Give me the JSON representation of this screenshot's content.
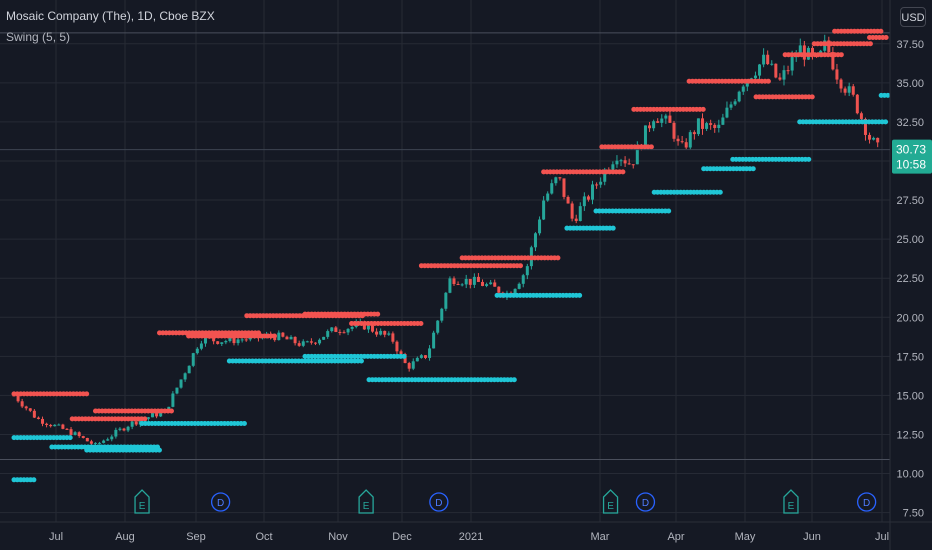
{
  "header": {
    "title": "Mosaic Company (The), 1D, Cboe BZX",
    "indicator": "Swing (5, 5)",
    "currency_button": "USD"
  },
  "colors": {
    "background": "#151924",
    "grid": "#262a35",
    "candle_up": "#26a69a",
    "candle_down": "#ef5350",
    "swing_high": "#f25350",
    "swing_low": "#1fc6d6",
    "axis_text": "#b2b5be",
    "price_label_bg": "#22ab94",
    "event_earnings": "#26a69a",
    "event_dividend": "#2962ff"
  },
  "chart_data": {
    "type": "candlestick",
    "y_axis": {
      "ylim": [
        6.9,
        40.3
      ],
      "ticks": [
        "7.50",
        "10.00",
        "12.50",
        "15.00",
        "17.50",
        "20.00",
        "22.50",
        "25.00",
        "27.50",
        "30.00",
        "32.50",
        "35.00",
        "37.50"
      ]
    },
    "x_axis": {
      "months": [
        "Jul",
        "Aug",
        "Sep",
        "Oct",
        "Nov",
        "Dec",
        "2021",
        "Mar",
        "Apr",
        "May",
        "Jun",
        "Jul"
      ],
      "day_range": [
        0,
        300
      ]
    },
    "last_price": {
      "price": "30.73",
      "countdown": "10:58"
    },
    "reference_lines": [
      38.2,
      10.9
    ],
    "path_points": [
      [
        0,
        15
      ],
      [
        8,
        13.5
      ],
      [
        20,
        12.6
      ],
      [
        28,
        11.8
      ],
      [
        40,
        13.2
      ],
      [
        52,
        14
      ],
      [
        60,
        17
      ],
      [
        64,
        18.6
      ],
      [
        72,
        18.5
      ],
      [
        90,
        18.8
      ],
      [
        100,
        18.2
      ],
      [
        110,
        19.2
      ],
      [
        120,
        19.5
      ],
      [
        130,
        18.6
      ],
      [
        135,
        16.8
      ],
      [
        142,
        17.6
      ],
      [
        150,
        22.5
      ],
      [
        160,
        22.2
      ],
      [
        170,
        21.5
      ],
      [
        176,
        23
      ],
      [
        182,
        27.5
      ],
      [
        187,
        29
      ],
      [
        192,
        26.2
      ],
      [
        200,
        28.5
      ],
      [
        207,
        30.5
      ],
      [
        212,
        29.8
      ],
      [
        220,
        33
      ],
      [
        226,
        32.2
      ],
      [
        229,
        30.6
      ],
      [
        235,
        32.3
      ],
      [
        242,
        32
      ],
      [
        250,
        35
      ],
      [
        258,
        36.5
      ],
      [
        263,
        35
      ],
      [
        270,
        37.2
      ],
      [
        276,
        36.2
      ],
      [
        279,
        37.5
      ],
      [
        283,
        35.5
      ],
      [
        289,
        33.8
      ],
      [
        294,
        31.5
      ],
      [
        297,
        30.7
      ]
    ],
    "swing_highs": [
      {
        "price": 15.1,
        "from_day": 0,
        "to_day": 25
      },
      {
        "price": 13.5,
        "from_day": 20,
        "to_day": 45
      },
      {
        "price": 14.0,
        "from_day": 28,
        "to_day": 55
      },
      {
        "price": 19.0,
        "from_day": 50,
        "to_day": 85
      },
      {
        "price": 18.8,
        "from_day": 60,
        "to_day": 90
      },
      {
        "price": 20.1,
        "from_day": 80,
        "to_day": 120
      },
      {
        "price": 20.2,
        "from_day": 100,
        "to_day": 126
      },
      {
        "price": 19.6,
        "from_day": 116,
        "to_day": 140
      },
      {
        "price": 23.3,
        "from_day": 140,
        "to_day": 175
      },
      {
        "price": 23.8,
        "from_day": 154,
        "to_day": 188
      },
      {
        "price": 29.3,
        "from_day": 182,
        "to_day": 210
      },
      {
        "price": 30.9,
        "from_day": 202,
        "to_day": 220
      },
      {
        "price": 33.3,
        "from_day": 213,
        "to_day": 237
      },
      {
        "price": 35.1,
        "from_day": 232,
        "to_day": 260
      },
      {
        "price": 34.1,
        "from_day": 255,
        "to_day": 275
      },
      {
        "price": 36.8,
        "from_day": 265,
        "to_day": 285
      },
      {
        "price": 37.5,
        "from_day": 275,
        "to_day": 295
      },
      {
        "price": 38.3,
        "from_day": 282,
        "to_day": 298
      },
      {
        "price": 37.9,
        "from_day": 294,
        "to_day": 310
      }
    ],
    "swing_lows": [
      {
        "price": 9.6,
        "from_day": 0,
        "to_day": 7
      },
      {
        "price": 12.3,
        "from_day": 0,
        "to_day": 20
      },
      {
        "price": 11.7,
        "from_day": 13,
        "to_day": 50
      },
      {
        "price": 11.5,
        "from_day": 25,
        "to_day": 50
      },
      {
        "price": 13.2,
        "from_day": 44,
        "to_day": 80
      },
      {
        "price": 17.2,
        "from_day": 74,
        "to_day": 120
      },
      {
        "price": 17.5,
        "from_day": 100,
        "to_day": 135
      },
      {
        "price": 16.0,
        "from_day": 122,
        "to_day": 172
      },
      {
        "price": 21.4,
        "from_day": 166,
        "to_day": 195
      },
      {
        "price": 25.7,
        "from_day": 190,
        "to_day": 207
      },
      {
        "price": 26.8,
        "from_day": 200,
        "to_day": 225
      },
      {
        "price": 28.0,
        "from_day": 220,
        "to_day": 243
      },
      {
        "price": 29.5,
        "from_day": 237,
        "to_day": 255
      },
      {
        "price": 30.1,
        "from_day": 247,
        "to_day": 274
      },
      {
        "price": 32.5,
        "from_day": 270,
        "to_day": 303
      },
      {
        "price": 34.2,
        "from_day": 298,
        "to_day": 310
      }
    ],
    "events": [
      {
        "type": "E",
        "day": 44
      },
      {
        "type": "D",
        "day": 71
      },
      {
        "type": "E",
        "day": 121
      },
      {
        "type": "D",
        "day": 146
      },
      {
        "type": "E",
        "day": 205
      },
      {
        "type": "D",
        "day": 217
      },
      {
        "type": "E",
        "day": 267
      },
      {
        "type": "D",
        "day": 293
      }
    ]
  }
}
